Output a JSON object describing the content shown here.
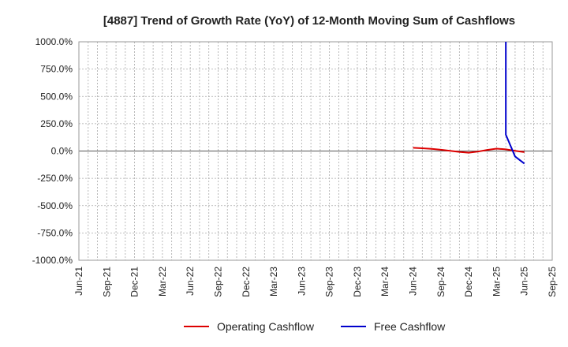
{
  "chart_data": {
    "type": "line",
    "title": "[4887]  Trend of Growth Rate (YoY) of 12-Month Moving Sum of Cashflows",
    "xlabel": "",
    "ylabel": "",
    "ylim": [
      -1000,
      1000
    ],
    "y_tick_labels": [
      "1000.0%",
      "750.0%",
      "500.0%",
      "250.0%",
      "0.0%",
      "-250.0%",
      "-500.0%",
      "-750.0%",
      "-1000.0%"
    ],
    "x_tick_labels": [
      "Jun-21",
      "Sep-21",
      "Dec-21",
      "Mar-22",
      "Jun-22",
      "Sep-22",
      "Dec-22",
      "Mar-23",
      "Jun-23",
      "Sep-23",
      "Dec-23",
      "Mar-24",
      "Jun-24",
      "Sep-24",
      "Dec-24",
      "Mar-25",
      "Jun-25",
      "Sep-25"
    ],
    "grid": true,
    "legend_position": "bottom",
    "series": [
      {
        "name": "Operating Cashflow",
        "color": "#dd0000",
        "points": [
          {
            "x": "Jun-24",
            "y": 30
          },
          {
            "x": "Jul-24",
            "y": 25
          },
          {
            "x": "Aug-24",
            "y": 20
          },
          {
            "x": "Sep-24",
            "y": 12
          },
          {
            "x": "Oct-24",
            "y": 2
          },
          {
            "x": "Nov-24",
            "y": -8
          },
          {
            "x": "Dec-24",
            "y": -15
          },
          {
            "x": "Jan-25",
            "y": -5
          },
          {
            "x": "Feb-25",
            "y": 10
          },
          {
            "x": "Mar-25",
            "y": 22
          },
          {
            "x": "Apr-25",
            "y": 15
          },
          {
            "x": "May-25",
            "y": 2
          },
          {
            "x": "Jun-25",
            "y": -10
          }
        ]
      },
      {
        "name": "Free Cashflow",
        "color": "#0000cc",
        "points": [
          {
            "x": "Apr-25",
            "y": 1000,
            "clipped": true
          },
          {
            "x": "Apr-25",
            "y": 150
          },
          {
            "x": "May-25",
            "y": -50
          },
          {
            "x": "Jun-25",
            "y": -115
          }
        ]
      }
    ]
  }
}
